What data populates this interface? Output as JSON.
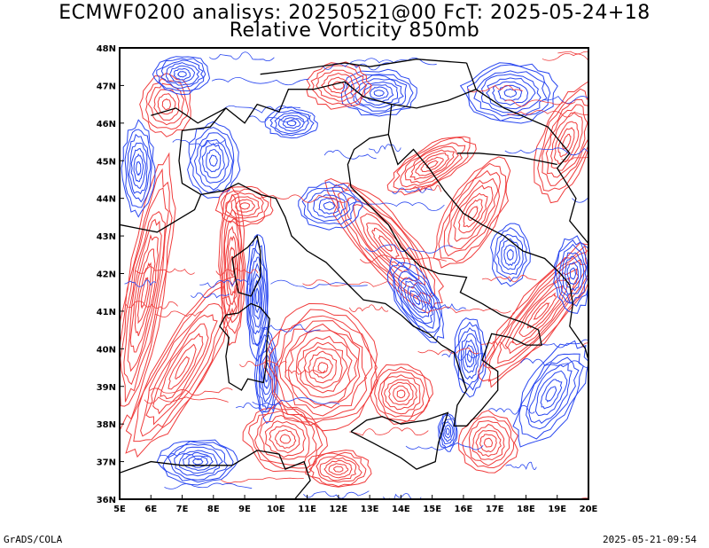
{
  "title_line1": "ECMWF0200 analisys: 20250521@00 FcT: 2025-05-24+18",
  "title_line2": "Relative Vorticity 850mb",
  "footer_left": "GrADS/COLA",
  "footer_right": "2025-05-21-09:54",
  "map": {
    "lon_range": [
      5,
      20
    ],
    "lat_range": [
      36,
      48
    ],
    "lon_ticks": [
      "5E",
      "6E",
      "7E",
      "8E",
      "9E",
      "10E",
      "11E",
      "12E",
      "13E",
      "14E",
      "15E",
      "16E",
      "17E",
      "18E",
      "19E",
      "20E"
    ],
    "lat_ticks": [
      "36N",
      "37N",
      "38N",
      "39N",
      "40N",
      "41N",
      "42N",
      "43N",
      "44N",
      "45N",
      "46N",
      "47N",
      "48N"
    ],
    "positive_color": "#f03c3c",
    "negative_color": "#2846f0",
    "coast_color": "#000000"
  }
}
